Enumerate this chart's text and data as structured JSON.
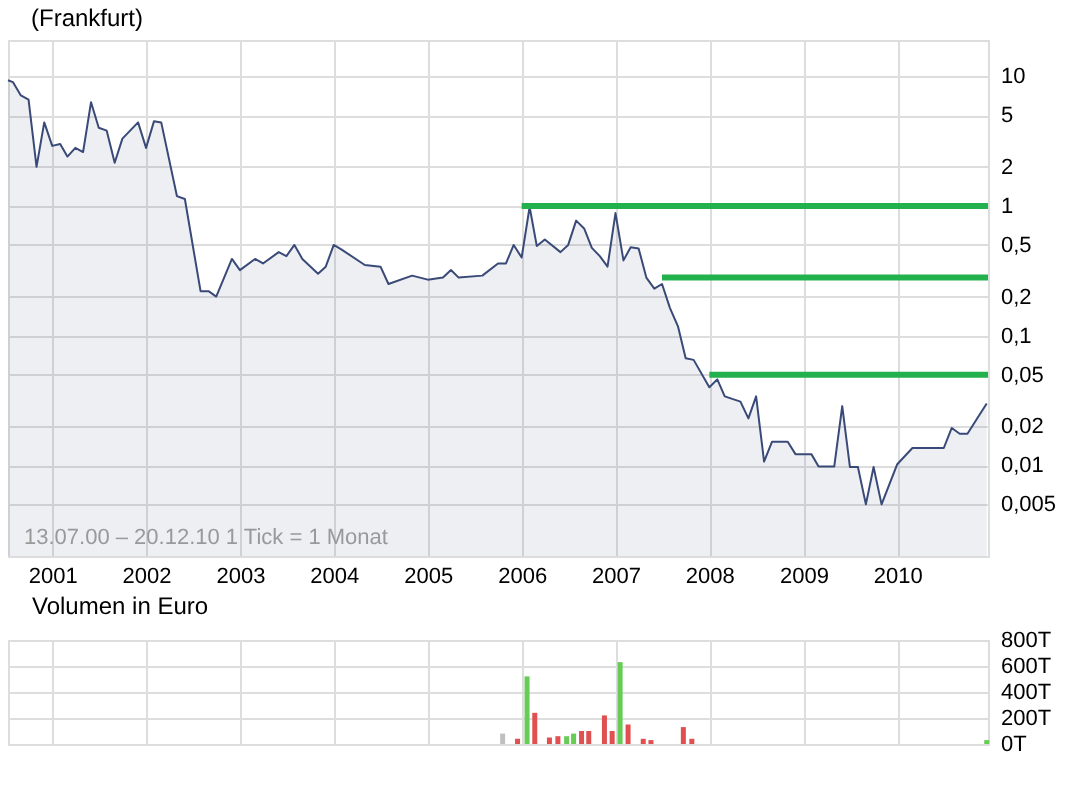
{
  "chart_data": [
    {
      "type": "area",
      "title": "(Frankfurt)",
      "xlim": [
        "2000-07-13",
        "2010-12-20"
      ],
      "xticks": [
        "2001",
        "2002",
        "2003",
        "2004",
        "2005",
        "2006",
        "2007",
        "2008",
        "2009",
        "2010"
      ],
      "log": "y",
      "ylim": [
        0.002,
        19
      ],
      "yticks": [
        10,
        5,
        2,
        1,
        {
          "value": 0.5,
          "label": "0,5"
        },
        {
          "value": 0.2,
          "label": "0,2"
        },
        {
          "value": 0.1,
          "label": "0,1"
        },
        {
          "value": 0.05,
          "label": "0,05"
        },
        {
          "value": 0.02,
          "label": "0,02"
        },
        {
          "value": 0.01,
          "label": "0,01"
        },
        {
          "value": 0.005,
          "label": "0,005"
        }
      ],
      "grid": true,
      "annotations": [
        "13.07.00 – 20.12.10   1 Tick = 1 Monat"
      ],
      "series": [
        {
          "color": "#3a4a78",
          "x": [
            "2000-07-13",
            "2000-08",
            "2000-09",
            "2000-10",
            "2000-11",
            "2000-12",
            "2001-01",
            "2001-02",
            "2001-03",
            "2001-04",
            "2001-05",
            "2001-06",
            "2001-07",
            "2001-08",
            "2001-09",
            "2001-10",
            "2001-12",
            "2002-01",
            "2002-02",
            "2002-03",
            "2002-05",
            "2002-06",
            "2002-08",
            "2002-09",
            "2002-10",
            "2002-12",
            "2003-01",
            "2003-03",
            "2003-04",
            "2003-06",
            "2003-07",
            "2003-08",
            "2003-09",
            "2003-11",
            "2003-12",
            "2004-01",
            "2004-02",
            "2004-05",
            "2004-07",
            "2004-08",
            "2004-11",
            "2005-01",
            "2005-03",
            "2005-04",
            "2005-05",
            "2005-08",
            "2005-10",
            "2005-11",
            "2005-12",
            "2006-01",
            "2006-02",
            "2006-03",
            "2006-04",
            "2006-06",
            "2006-07",
            "2006-08",
            "2006-09",
            "2006-10",
            "2006-11",
            "2006-12",
            "2007-01",
            "2007-02",
            "2007-03",
            "2007-04",
            "2007-05",
            "2007-06",
            "2007-07",
            "2007-08",
            "2007-09",
            "2007-10",
            "2007-11",
            "2008-01",
            "2008-02",
            "2008-03",
            "2008-05",
            "2008-06",
            "2008-07",
            "2008-08",
            "2008-09",
            "2008-11",
            "2008-12",
            "2009-02",
            "2009-03",
            "2009-05",
            "2009-06",
            "2009-07",
            "2009-08",
            "2009-09",
            "2009-10",
            "2009-11",
            "2010-01",
            "2010-03",
            "2010-07",
            "2010-08",
            "2010-09",
            "2010-10",
            "2010-12-15"
          ],
          "values": [
            9.3,
            9.0,
            7.1,
            6.6,
            2.0,
            4.4,
            2.9,
            3.0,
            2.4,
            2.8,
            2.6,
            6.3,
            4.0,
            3.8,
            2.15,
            3.3,
            4.4,
            2.8,
            4.5,
            4.4,
            1.19,
            1.13,
            0.22,
            0.22,
            0.2,
            0.39,
            0.32,
            0.39,
            0.36,
            0.44,
            0.41,
            0.5,
            0.39,
            0.3,
            0.34,
            0.5,
            0.46,
            0.35,
            0.34,
            0.25,
            0.29,
            0.27,
            0.28,
            0.32,
            0.28,
            0.29,
            0.36,
            0.36,
            0.5,
            0.4,
            0.98,
            0.49,
            0.55,
            0.44,
            0.5,
            0.77,
            0.67,
            0.475,
            0.41,
            0.34,
            0.88,
            0.38,
            0.48,
            0.47,
            0.28,
            0.23,
            0.25,
            0.163,
            0.118,
            0.067,
            0.065,
            0.04,
            0.046,
            0.034,
            0.031,
            0.023,
            0.034,
            0.0107,
            0.0152,
            0.0152,
            0.0122,
            0.0122,
            0.0098,
            0.0098,
            0.0286,
            0.0097,
            0.0097,
            0.005,
            0.0097,
            0.005,
            0.0102,
            0.0136,
            0.0136,
            0.0194,
            0.0175,
            0.0175,
            0.03
          ]
        },
        {
          "type": "line",
          "color": "#22b14c",
          "x": [
            "2006-01",
            "2010-12-20"
          ],
          "values": [
            1.0,
            1.0
          ]
        },
        {
          "type": "line",
          "color": "#22b14c",
          "x": [
            "2007-07",
            "2010-12-20"
          ],
          "values": [
            0.28,
            0.28
          ]
        },
        {
          "type": "line",
          "color": "#22b14c",
          "x": [
            "2008-01",
            "2010-12-20"
          ],
          "values": [
            0.05,
            0.05
          ]
        }
      ]
    },
    {
      "type": "bar",
      "title": "Volumen in Euro",
      "xlim": [
        "2000-07-13",
        "2010-12-20"
      ],
      "xticks": [
        "2001",
        "2002",
        "2003",
        "2004",
        "2005",
        "2006",
        "2007",
        "2008",
        "2009",
        "2010"
      ],
      "tick_labels": "y",
      "ylim": [
        0,
        800
      ],
      "yticks": [
        {
          "value": 0,
          "label": "0T"
        },
        {
          "value": 200,
          "label": "200T"
        },
        {
          "value": 400,
          "label": "400T"
        },
        {
          "value": 600,
          "label": "600T"
        },
        {
          "value": 800,
          "label": "800T"
        }
      ],
      "grid": true,
      "x": [
        "2005-10-19",
        "2005-12-16",
        "2006-01-22",
        "2006-02-21",
        "2006-04-19",
        "2006-05-22",
        "2006-06-25",
        "2006-07-22",
        "2006-08-22",
        "2006-09-19",
        "2006-11-19",
        "2006-12-19",
        "2007-01-19",
        "2007-02-19",
        "2007-04-19",
        "2007-05-19",
        "2007-09-22",
        "2007-10-25",
        "2010-12-15"
      ],
      "values": [
        80,
        40,
        520,
        240,
        50,
        60,
        60,
        80,
        100,
        100,
        220,
        100,
        630,
        150,
        40,
        30,
        130,
        40,
        30
      ],
      "colors": [
        "#c0c0c0",
        "#e05050",
        "#66cc55",
        "#e05050",
        "#e05050",
        "#e05050",
        "#66cc55",
        "#66cc55",
        "#e05050",
        "#e05050",
        "#e05050",
        "#e05050",
        "#66cc55",
        "#e05050",
        "#e05050",
        "#e05050",
        "#e05050",
        "#e05050",
        "#66cc55"
      ]
    }
  ]
}
